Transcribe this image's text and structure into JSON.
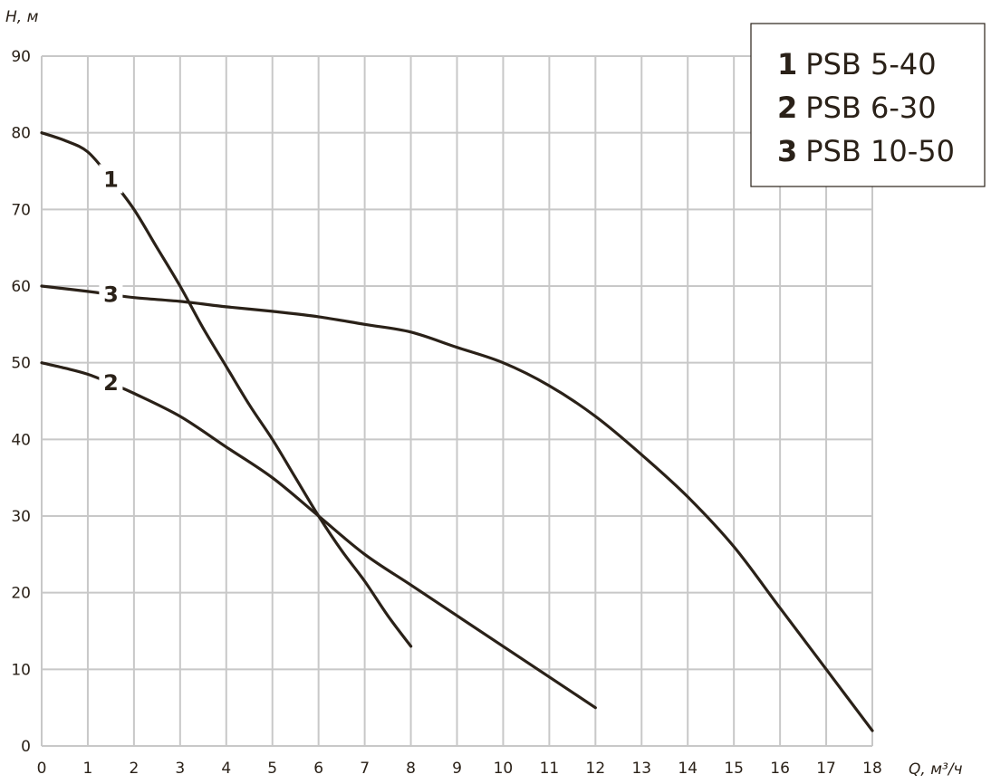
{
  "chart_data": {
    "type": "line",
    "xlabel": "Q, м³/ч",
    "ylabel": "H, м",
    "xlim": [
      0,
      18
    ],
    "ylim": [
      0,
      90
    ],
    "x_ticks": [
      0,
      1,
      2,
      3,
      4,
      5,
      6,
      7,
      8,
      9,
      10,
      11,
      12,
      13,
      14,
      15,
      16,
      17,
      18
    ],
    "y_ticks": [
      0,
      10,
      20,
      30,
      40,
      50,
      60,
      70,
      80,
      90
    ],
    "grid": true,
    "legend_position": "top-right",
    "colors": {
      "curve": "#2a2118",
      "grid": "#c8c8c8",
      "text": "#2a2118"
    },
    "series": [
      {
        "id": "1",
        "name": "PSB 5-40",
        "label": "1",
        "label_at": [
          1.5,
          74
        ],
        "points": [
          [
            0,
            80
          ],
          [
            0.5,
            79
          ],
          [
            1,
            77.5
          ],
          [
            1.5,
            74
          ],
          [
            2,
            70
          ],
          [
            2.5,
            65
          ],
          [
            3,
            60
          ],
          [
            3.5,
            54.5
          ],
          [
            4,
            49.5
          ],
          [
            4.5,
            44.5
          ],
          [
            5,
            40
          ],
          [
            5.5,
            35
          ],
          [
            6,
            30
          ],
          [
            6.5,
            25.5
          ],
          [
            7,
            21.5
          ],
          [
            7.5,
            17
          ],
          [
            8,
            13
          ]
        ]
      },
      {
        "id": "2",
        "name": "PSB 6-30",
        "label": "2",
        "label_at": [
          1.5,
          47.5
        ],
        "points": [
          [
            0,
            50
          ],
          [
            0.5,
            49.3
          ],
          [
            1,
            48.5
          ],
          [
            1.5,
            47.3
          ],
          [
            2,
            46
          ],
          [
            3,
            43
          ],
          [
            4,
            39
          ],
          [
            5,
            35
          ],
          [
            6,
            30
          ],
          [
            7,
            25
          ],
          [
            8,
            21
          ],
          [
            9,
            17
          ],
          [
            10,
            13
          ],
          [
            11,
            9
          ],
          [
            12,
            5
          ]
        ]
      },
      {
        "id": "3",
        "name": "PSB 10-50",
        "label": "3",
        "label_at": [
          1.5,
          59
        ],
        "points": [
          [
            0,
            60
          ],
          [
            1,
            59.3
          ],
          [
            2,
            58.5
          ],
          [
            3,
            58
          ],
          [
            4,
            57.3
          ],
          [
            5,
            56.7
          ],
          [
            6,
            56
          ],
          [
            7,
            55
          ],
          [
            8,
            54
          ],
          [
            9,
            52
          ],
          [
            10,
            50
          ],
          [
            11,
            47
          ],
          [
            12,
            43
          ],
          [
            13,
            38
          ],
          [
            14,
            32.5
          ],
          [
            15,
            26
          ],
          [
            16,
            18
          ],
          [
            17,
            10
          ],
          [
            18,
            2
          ]
        ]
      }
    ]
  }
}
